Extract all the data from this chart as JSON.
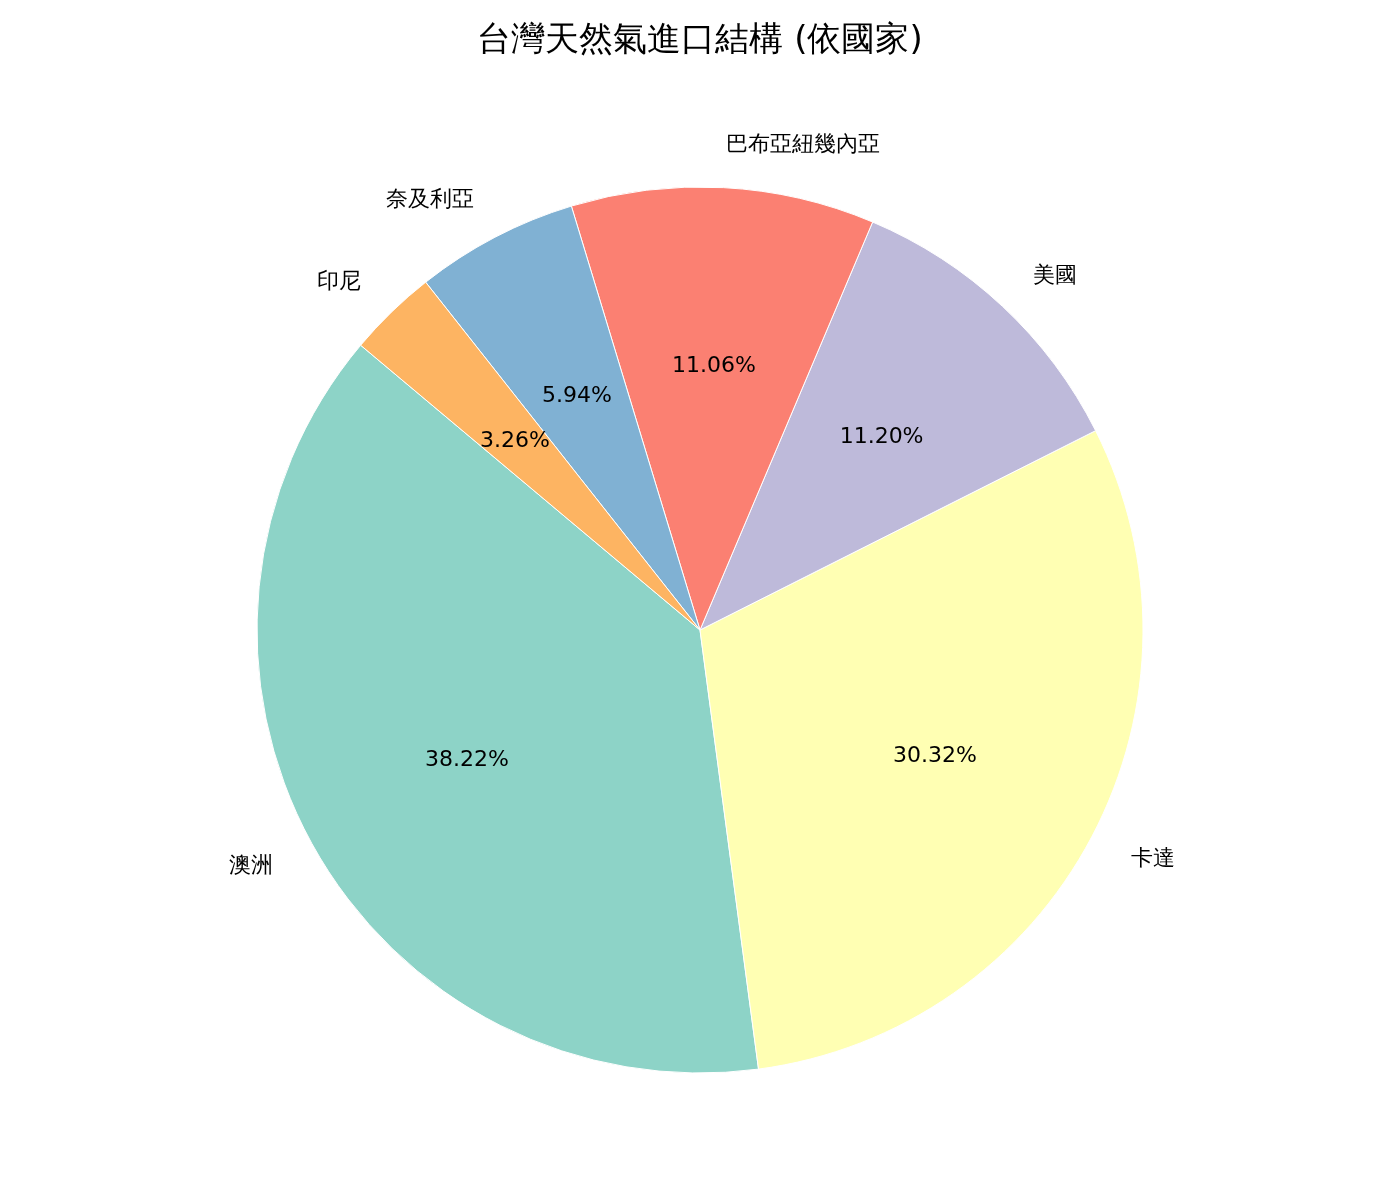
{
  "chart_data": {
    "type": "pie",
    "title": "台灣天然氣進口結構 (依國家)",
    "categories": [
      "澳洲",
      "卡達",
      "美國",
      "巴布亞紐幾內亞",
      "奈及利亞",
      "印尼"
    ],
    "values": [
      38.22,
      30.32,
      11.2,
      11.06,
      5.94,
      3.26
    ],
    "value_labels": [
      "38.22%",
      "30.32%",
      "11.20%",
      "11.06%",
      "5.94%",
      "3.26%"
    ],
    "colors": [
      "#8dd3c7",
      "#ffffb3",
      "#bebada",
      "#fb8072",
      "#80b1d3",
      "#fdb462"
    ]
  }
}
